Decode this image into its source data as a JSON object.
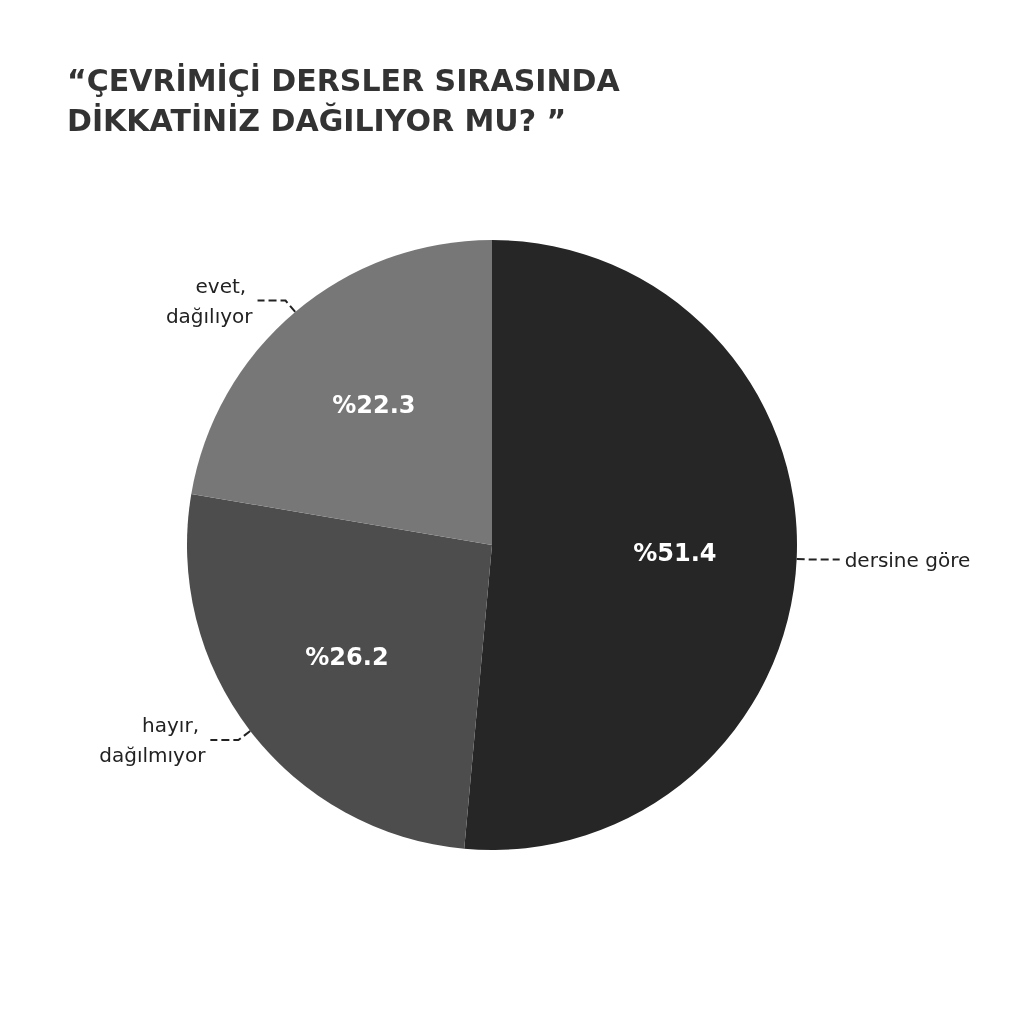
{
  "chart_data": {
    "type": "pie",
    "title": "“ÇEVRİMİÇİ DERSLER SIRASINDA\nDİKKATİNİZ DAĞILIYOR MU? ”",
    "categories": [
      "dersine göre",
      "hayır, dağılmıyor",
      "evet, dağılıyor"
    ],
    "values": [
      51.4,
      26.2,
      22.3
    ],
    "value_labels": [
      "%51.4",
      "%26.2",
      "%22.3"
    ],
    "colors": [
      "#262626",
      "#4d4d4d",
      "#777777"
    ],
    "legend": false
  }
}
